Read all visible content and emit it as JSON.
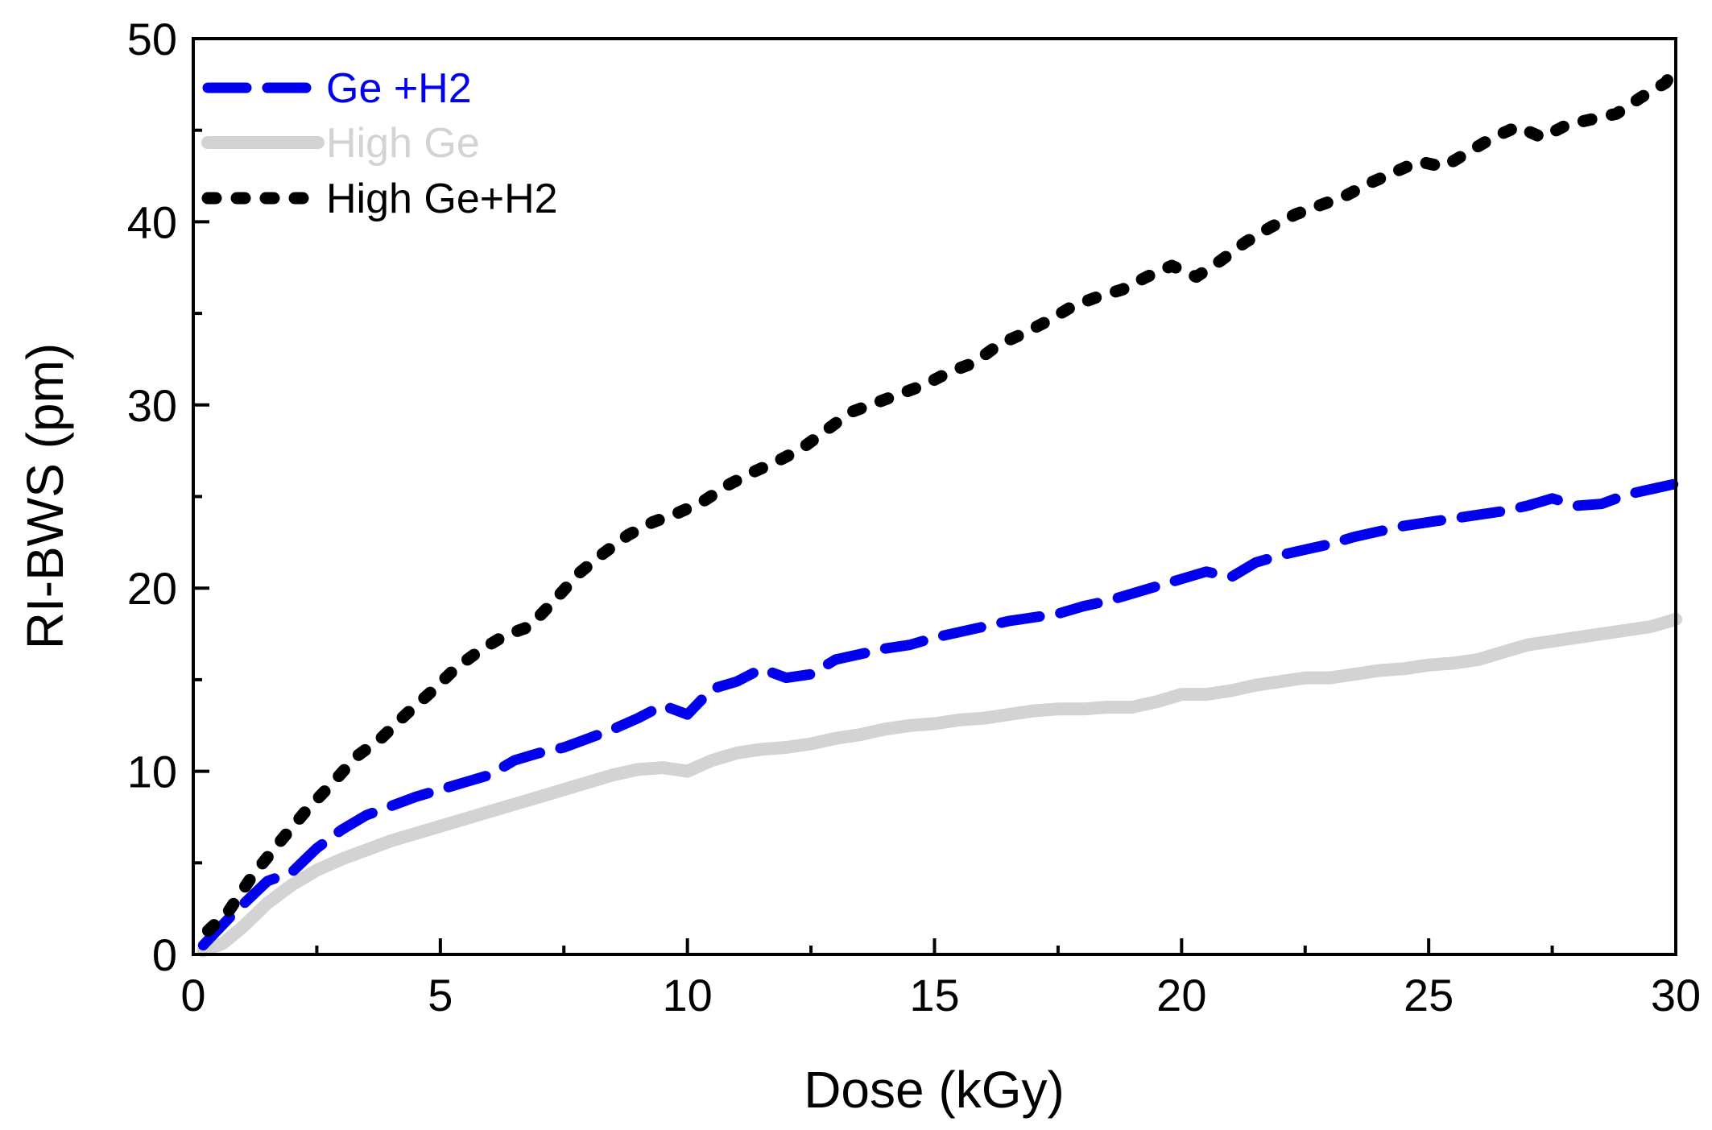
{
  "chart_data": {
    "type": "line",
    "title": "",
    "xlabel": "Dose (kGy)",
    "ylabel": "RI-BWS (pm)",
    "xlim": [
      0,
      30
    ],
    "ylim": [
      0,
      50
    ],
    "xticks": [
      0,
      5,
      10,
      15,
      20,
      25,
      30
    ],
    "yticks": [
      0,
      10,
      20,
      30,
      40,
      50
    ],
    "xticks_minor": [
      2.5,
      7.5,
      12.5,
      17.5,
      22.5,
      27.5
    ],
    "yticks_minor": [
      5,
      15,
      25,
      35,
      45
    ],
    "grid": false,
    "legend_position": "top-left",
    "series": [
      {
        "name": "Ge +H2",
        "color": "#0000ee",
        "style": "dash",
        "x": [
          0.2,
          0.8,
          1.5,
          2.0,
          2.5,
          3.0,
          3.5,
          4.0,
          4.5,
          5.0,
          5.5,
          6.0,
          6.5,
          7.0,
          7.5,
          8.0,
          8.5,
          9.0,
          9.5,
          10.0,
          10.5,
          11.0,
          11.5,
          12.0,
          12.5,
          13.0,
          13.5,
          14.0,
          14.5,
          15.0,
          15.5,
          16.0,
          16.5,
          17.0,
          17.5,
          18.0,
          18.5,
          19.0,
          19.5,
          20.0,
          20.5,
          21.0,
          21.5,
          22.0,
          22.5,
          23.0,
          23.5,
          24.0,
          24.5,
          25.0,
          25.5,
          26.0,
          26.5,
          27.0,
          27.5,
          28.0,
          28.5,
          29.0,
          29.5,
          30.0
        ],
        "values": [
          0.5,
          2.2,
          4.0,
          4.5,
          5.8,
          6.8,
          7.6,
          8.1,
          8.6,
          9.0,
          9.4,
          9.8,
          10.6,
          11.0,
          11.3,
          11.8,
          12.3,
          12.9,
          13.6,
          13.1,
          14.5,
          14.9,
          15.6,
          15.1,
          15.3,
          16.1,
          16.4,
          16.7,
          16.9,
          17.3,
          17.6,
          17.9,
          18.2,
          18.4,
          18.6,
          19.0,
          19.3,
          19.7,
          20.1,
          20.5,
          20.9,
          20.6,
          21.4,
          21.8,
          22.1,
          22.4,
          22.8,
          23.1,
          23.4,
          23.6,
          23.8,
          24.0,
          24.2,
          24.5,
          24.9,
          24.5,
          24.6,
          25.1,
          25.4,
          25.7
        ]
      },
      {
        "name": "High Ge",
        "color": "#d3d3d3",
        "style": "solid",
        "x": [
          0.2,
          0.6,
          1.0,
          1.5,
          2.0,
          2.5,
          3.0,
          3.5,
          4.0,
          4.5,
          5.0,
          5.5,
          6.0,
          6.5,
          7.0,
          7.5,
          8.0,
          8.5,
          9.0,
          9.5,
          10.0,
          10.5,
          11.0,
          11.5,
          12.0,
          12.5,
          13.0,
          13.5,
          14.0,
          14.5,
          15.0,
          15.5,
          16.0,
          16.5,
          17.0,
          17.5,
          18.0,
          18.5,
          19.0,
          19.5,
          20.0,
          20.5,
          21.0,
          21.5,
          22.0,
          22.5,
          23.0,
          23.5,
          24.0,
          24.5,
          25.0,
          25.5,
          26.0,
          26.5,
          27.0,
          27.5,
          28.0,
          28.5,
          29.0,
          29.5,
          30.0
        ],
        "values": [
          0.2,
          0.6,
          1.5,
          2.8,
          3.8,
          4.6,
          5.2,
          5.7,
          6.2,
          6.6,
          7.0,
          7.4,
          7.8,
          8.2,
          8.6,
          9.0,
          9.4,
          9.8,
          10.1,
          10.2,
          10.0,
          10.6,
          11.0,
          11.2,
          11.3,
          11.5,
          11.8,
          12.0,
          12.3,
          12.5,
          12.6,
          12.8,
          12.9,
          13.1,
          13.3,
          13.4,
          13.4,
          13.5,
          13.5,
          13.8,
          14.2,
          14.2,
          14.4,
          14.7,
          14.9,
          15.1,
          15.1,
          15.3,
          15.5,
          15.6,
          15.8,
          15.9,
          16.1,
          16.5,
          16.9,
          17.1,
          17.3,
          17.5,
          17.7,
          17.9,
          18.3
        ]
      },
      {
        "name": "High Ge+H2",
        "color": "#000000",
        "style": "dot",
        "x": [
          0.3,
          0.7,
          1.2,
          1.8,
          2.3,
          2.8,
          3.3,
          3.8,
          4.3,
          4.8,
          5.3,
          5.8,
          6.3,
          6.8,
          7.3,
          7.8,
          8.3,
          8.8,
          9.3,
          9.8,
          10.3,
          10.8,
          11.3,
          11.8,
          12.3,
          12.8,
          13.3,
          13.8,
          14.3,
          14.8,
          15.3,
          15.8,
          16.3,
          16.8,
          17.3,
          17.8,
          18.3,
          18.8,
          19.3,
          19.8,
          20.3,
          20.8,
          21.3,
          21.8,
          22.3,
          22.8,
          23.3,
          23.8,
          24.3,
          24.8,
          25.3,
          25.8,
          26.3,
          26.8,
          27.3,
          27.8,
          28.3,
          28.8,
          29.3,
          29.8,
          30.0
        ],
        "values": [
          1.3,
          2.3,
          4.3,
          6.3,
          7.9,
          9.3,
          10.8,
          11.8,
          13.1,
          14.3,
          15.6,
          16.6,
          17.4,
          17.9,
          19.3,
          20.8,
          21.9,
          22.9,
          23.6,
          24.1,
          24.7,
          25.6,
          26.3,
          26.9,
          27.6,
          28.6,
          29.6,
          30.1,
          30.6,
          31.1,
          31.8,
          32.3,
          33.3,
          33.9,
          34.6,
          35.4,
          35.9,
          36.3,
          37.0,
          37.6,
          37.0,
          37.9,
          38.9,
          39.7,
          40.4,
          40.9,
          41.4,
          42.1,
          42.7,
          43.3,
          43.0,
          43.8,
          44.6,
          45.2,
          44.6,
          45.3,
          45.6,
          45.9,
          46.8,
          47.6,
          48.5
        ]
      }
    ]
  }
}
